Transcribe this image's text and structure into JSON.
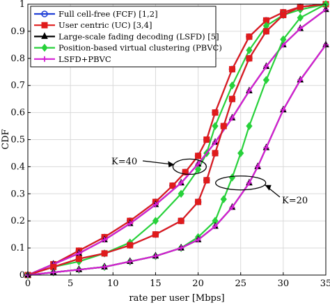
{
  "chart_data": {
    "type": "line",
    "xlabel": "rate per user [Mbps]",
    "ylabel": "CDF",
    "xlim": [
      0,
      35
    ],
    "ylim": [
      0,
      1
    ],
    "xticks": [
      0,
      5,
      10,
      15,
      20,
      25,
      30,
      35
    ],
    "yticks": [
      0,
      0.1,
      0.2,
      0.3,
      0.4,
      0.5,
      0.6,
      0.7,
      0.8,
      0.9,
      1
    ],
    "grid": true,
    "legend_position": "top-left",
    "series": [
      {
        "name": "Full cell-free (FCF) [1,2]",
        "color": "#1f3fd6",
        "marker": "circle",
        "group": "K=40",
        "x": [
          0,
          3,
          6,
          9,
          12,
          15,
          17,
          18.5,
          20,
          21,
          22,
          24,
          26,
          28,
          30,
          32,
          35
        ],
        "y": [
          0,
          0.04,
          0.09,
          0.14,
          0.2,
          0.27,
          0.33,
          0.38,
          0.44,
          0.5,
          0.6,
          0.76,
          0.88,
          0.94,
          0.97,
          0.99,
          1.0
        ]
      },
      {
        "name": "User centric (UC) [3,4]",
        "color": "#e01b1b",
        "marker": "square",
        "group": "K=40",
        "x": [
          0,
          3,
          6,
          9,
          12,
          15,
          17,
          18.5,
          20,
          21,
          22,
          24,
          26,
          28,
          30,
          32,
          35
        ],
        "y": [
          0,
          0.04,
          0.09,
          0.14,
          0.2,
          0.27,
          0.33,
          0.38,
          0.44,
          0.5,
          0.6,
          0.76,
          0.88,
          0.94,
          0.97,
          0.99,
          1.0
        ]
      },
      {
        "name": "Large-scale fading decoding (LSFD) [5]",
        "color": "#000000",
        "marker": "triangle",
        "group": "K=40",
        "x": [
          0,
          3,
          6,
          9,
          12,
          15,
          18,
          20,
          22,
          24,
          26,
          28,
          30,
          32,
          35
        ],
        "y": [
          0,
          0.04,
          0.08,
          0.13,
          0.19,
          0.26,
          0.34,
          0.41,
          0.49,
          0.58,
          0.68,
          0.77,
          0.85,
          0.91,
          0.98
        ]
      },
      {
        "name": "Position-based virtual clustering (PBVC)",
        "color": "#27d13a",
        "marker": "diamond",
        "group": "K=40",
        "x": [
          0,
          3,
          6,
          9,
          12,
          15,
          18,
          20,
          21,
          22,
          24,
          26,
          28,
          30,
          32,
          35
        ],
        "y": [
          0,
          0.03,
          0.05,
          0.08,
          0.12,
          0.2,
          0.3,
          0.39,
          0.45,
          0.55,
          0.7,
          0.83,
          0.92,
          0.96,
          0.98,
          1.0
        ]
      },
      {
        "name": "LSFD+PBVC",
        "color": "#d41fd4",
        "marker": "plus",
        "group": "K=40",
        "x": [
          0,
          3,
          6,
          9,
          12,
          15,
          18,
          20,
          22,
          24,
          26,
          28,
          30,
          32,
          35
        ],
        "y": [
          0,
          0.04,
          0.08,
          0.13,
          0.19,
          0.26,
          0.34,
          0.41,
          0.49,
          0.58,
          0.68,
          0.77,
          0.85,
          0.91,
          0.98
        ]
      },
      {
        "name": "",
        "color": "#1f3fd6",
        "marker": "circle",
        "group": "K=20",
        "x": [
          0,
          3,
          6,
          9,
          12,
          15,
          18,
          20,
          21,
          22,
          23,
          24,
          26,
          28,
          30,
          32,
          35
        ],
        "y": [
          0,
          0.03,
          0.06,
          0.08,
          0.11,
          0.15,
          0.2,
          0.27,
          0.35,
          0.45,
          0.55,
          0.65,
          0.8,
          0.9,
          0.96,
          0.99,
          1.0
        ]
      },
      {
        "name": "",
        "color": "#e01b1b",
        "marker": "square",
        "group": "K=20",
        "x": [
          0,
          3,
          6,
          9,
          12,
          15,
          18,
          20,
          21,
          22,
          23,
          24,
          26,
          28,
          30,
          32,
          35
        ],
        "y": [
          0,
          0.03,
          0.06,
          0.08,
          0.11,
          0.15,
          0.2,
          0.27,
          0.35,
          0.45,
          0.55,
          0.65,
          0.8,
          0.9,
          0.96,
          0.99,
          1.0
        ]
      },
      {
        "name": "",
        "color": "#27d13a",
        "marker": "diamond",
        "group": "K=20",
        "x": [
          0,
          3,
          6,
          9,
          12,
          15,
          18,
          20,
          22,
          23,
          24,
          25,
          26,
          28,
          30,
          32,
          35
        ],
        "y": [
          0,
          0.01,
          0.02,
          0.03,
          0.05,
          0.07,
          0.1,
          0.14,
          0.2,
          0.28,
          0.36,
          0.45,
          0.55,
          0.72,
          0.87,
          0.95,
          1.0
        ]
      },
      {
        "name": "",
        "color": "#000000",
        "marker": "triangle",
        "group": "K=20",
        "x": [
          0,
          3,
          6,
          9,
          12,
          15,
          18,
          20,
          22,
          24,
          26,
          27,
          28,
          30,
          32,
          35
        ],
        "y": [
          0,
          0.01,
          0.02,
          0.03,
          0.05,
          0.07,
          0.1,
          0.13,
          0.18,
          0.25,
          0.34,
          0.4,
          0.47,
          0.61,
          0.72,
          0.85
        ]
      },
      {
        "name": "",
        "color": "#d41fd4",
        "marker": "plus",
        "group": "K=20",
        "x": [
          0,
          3,
          6,
          9,
          12,
          15,
          18,
          20,
          22,
          24,
          26,
          27,
          28,
          30,
          32,
          35
        ],
        "y": [
          0,
          0.01,
          0.02,
          0.03,
          0.05,
          0.07,
          0.1,
          0.13,
          0.18,
          0.25,
          0.34,
          0.4,
          0.47,
          0.61,
          0.72,
          0.85
        ]
      }
    ],
    "annotations": [
      {
        "text": "K=40",
        "target_x": 19,
        "target_y": 0.4
      },
      {
        "text": "K=20",
        "target_x": 25,
        "target_y": 0.34
      }
    ]
  }
}
